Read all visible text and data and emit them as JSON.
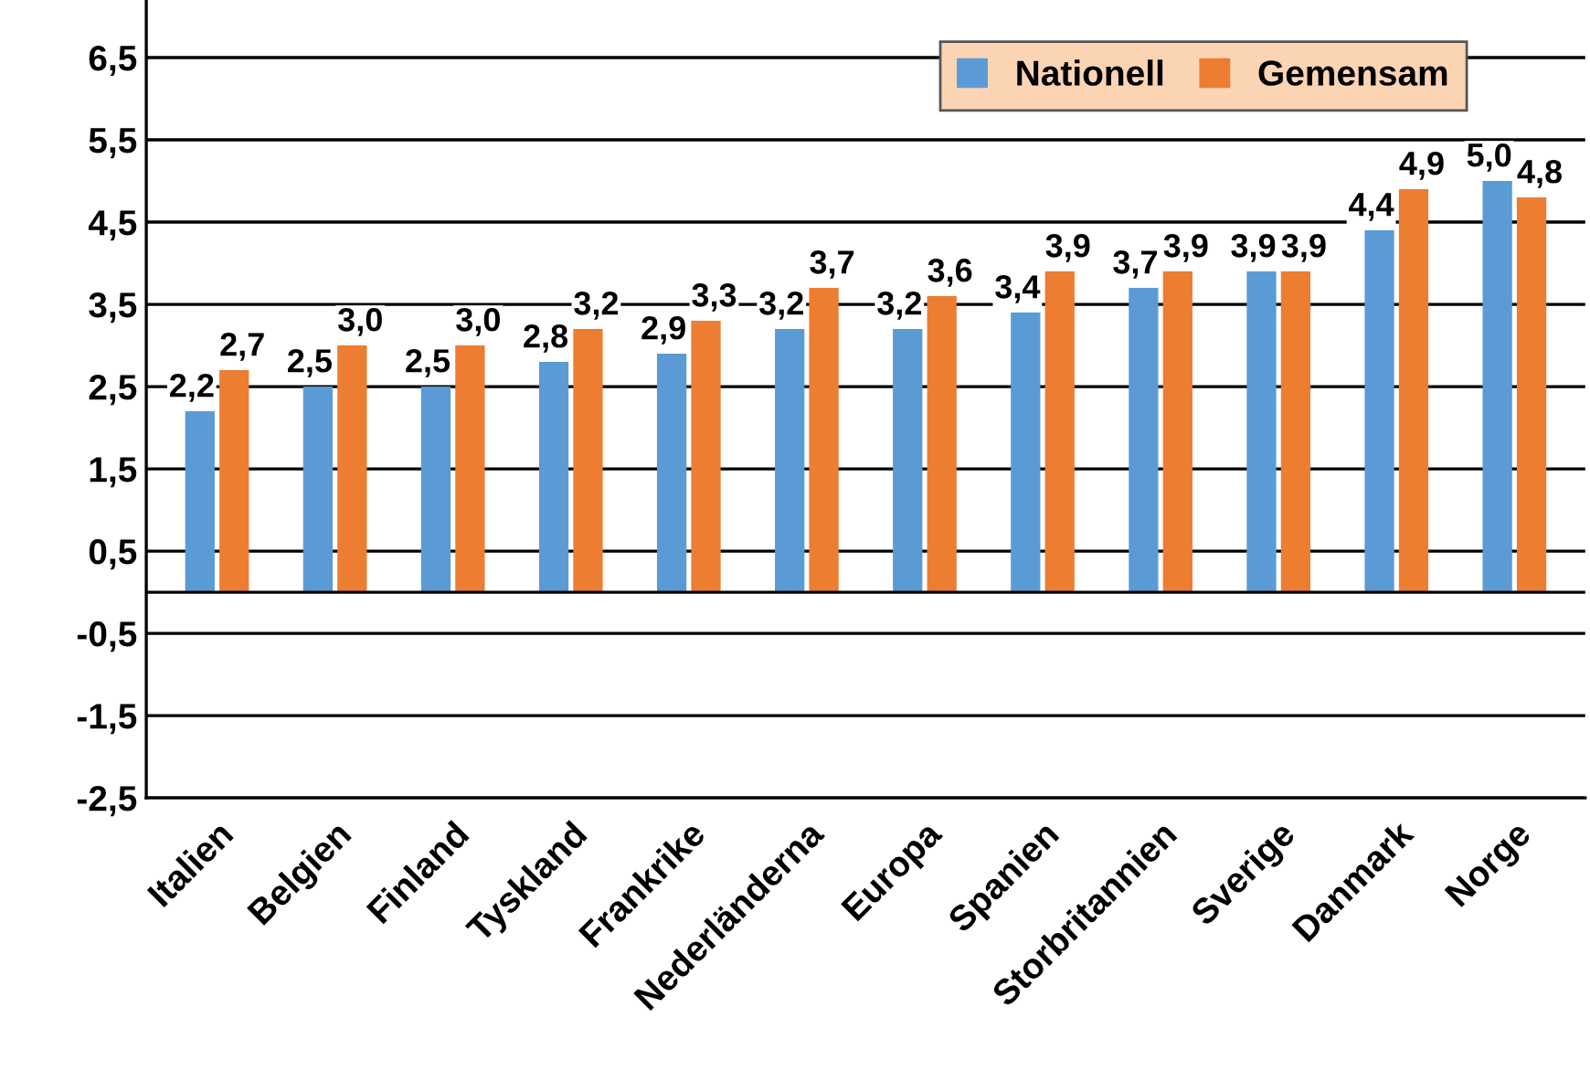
{
  "chart_data": {
    "type": "bar",
    "categories": [
      "Italien",
      "Belgien",
      "Finland",
      "Tyskland",
      "Frankrike",
      "Nederländerna",
      "Europa",
      "Spanien",
      "Storbritannien",
      "Sverige",
      "Danmark",
      "Norge"
    ],
    "series": [
      {
        "name": "Nationell",
        "color": "#5b9bd5",
        "values": [
          2.2,
          2.5,
          2.5,
          2.8,
          2.9,
          3.2,
          3.2,
          3.4,
          3.7,
          3.9,
          4.4,
          5.0
        ],
        "value_labels": [
          "2,2",
          "2,5",
          "2,5",
          "2,8",
          "2,9",
          "3,2",
          "3,2",
          "3,4",
          "3,7",
          "3,9",
          "4,4",
          "5,0"
        ]
      },
      {
        "name": "Gemensam",
        "color": "#ed7d31",
        "values": [
          2.7,
          3.0,
          3.0,
          3.2,
          3.3,
          3.7,
          3.6,
          3.9,
          3.9,
          3.9,
          4.9,
          4.8
        ],
        "value_labels": [
          "2,7",
          "3,0",
          "3,0",
          "3,2",
          "3,3",
          "3,7",
          "3,6",
          "3,9",
          "3,9",
          "3,9",
          "4,9",
          "4,8"
        ]
      }
    ],
    "ylim": [
      -2.5,
      7.2
    ],
    "yticks": [
      {
        "value": -2.5,
        "label": "-2,5"
      },
      {
        "value": -1.5,
        "label": "-1,5"
      },
      {
        "value": -0.5,
        "label": "-0,5"
      },
      {
        "value": 0.5,
        "label": "0,5"
      },
      {
        "value": 1.5,
        "label": "1,5"
      },
      {
        "value": 2.5,
        "label": "2,5"
      },
      {
        "value": 3.5,
        "label": "3,5"
      },
      {
        "value": 4.5,
        "label": "4,5"
      },
      {
        "value": 5.5,
        "label": "5,5"
      },
      {
        "value": 6.5,
        "label": "6,5"
      }
    ],
    "grid": "y",
    "legend": "top right"
  }
}
